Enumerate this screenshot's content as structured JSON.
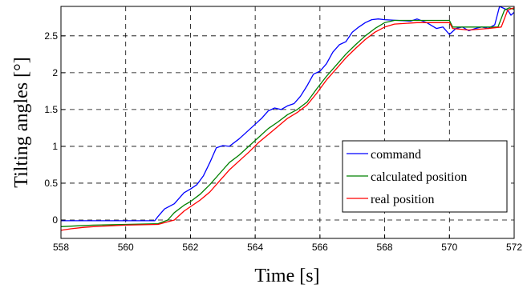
{
  "chart_data": {
    "type": "line",
    "title": "",
    "xlabel": "Time [s]",
    "ylabel": "Tilting angles [°]",
    "xlim": [
      558,
      572
    ],
    "ylim": [
      -0.25,
      2.9
    ],
    "x_ticks": [
      558,
      560,
      562,
      564,
      566,
      568,
      570,
      572
    ],
    "y_ticks": [
      0,
      0.5,
      1,
      1.5,
      2,
      2.5
    ],
    "x_tick_labels": [
      "558",
      "560",
      "562",
      "564",
      "566",
      "568",
      "570",
      "572"
    ],
    "y_tick_labels": [
      "0",
      "0.5",
      "1",
      "1.5",
      "2",
      "2.5"
    ],
    "grid": true,
    "legend_position": "lower-right",
    "series": [
      {
        "name": "command",
        "color": "#0000ff",
        "points": [
          [
            558,
            -0.01
          ],
          [
            559,
            -0.01
          ],
          [
            560,
            -0.01
          ],
          [
            560.9,
            -0.01
          ],
          [
            561.0,
            0.05
          ],
          [
            561.2,
            0.15
          ],
          [
            561.5,
            0.22
          ],
          [
            561.8,
            0.37
          ],
          [
            562.0,
            0.42
          ],
          [
            562.2,
            0.48
          ],
          [
            562.4,
            0.6
          ],
          [
            562.6,
            0.78
          ],
          [
            562.8,
            0.98
          ],
          [
            563.0,
            1.01
          ],
          [
            563.2,
            1.0
          ],
          [
            563.5,
            1.1
          ],
          [
            563.8,
            1.22
          ],
          [
            564.0,
            1.3
          ],
          [
            564.2,
            1.38
          ],
          [
            564.4,
            1.48
          ],
          [
            564.6,
            1.52
          ],
          [
            564.8,
            1.5
          ],
          [
            565.0,
            1.55
          ],
          [
            565.2,
            1.58
          ],
          [
            565.4,
            1.68
          ],
          [
            565.6,
            1.82
          ],
          [
            565.8,
            1.98
          ],
          [
            566.0,
            2.02
          ],
          [
            566.2,
            2.12
          ],
          [
            566.4,
            2.28
          ],
          [
            566.6,
            2.38
          ],
          [
            566.8,
            2.42
          ],
          [
            567.0,
            2.55
          ],
          [
            567.2,
            2.62
          ],
          [
            567.4,
            2.68
          ],
          [
            567.6,
            2.72
          ],
          [
            567.8,
            2.73
          ],
          [
            568.0,
            2.72
          ],
          [
            568.4,
            2.71
          ],
          [
            568.8,
            2.7
          ],
          [
            569.0,
            2.73
          ],
          [
            569.3,
            2.68
          ],
          [
            569.6,
            2.6
          ],
          [
            569.8,
            2.62
          ],
          [
            570.0,
            2.52
          ],
          [
            570.2,
            2.6
          ],
          [
            570.4,
            2.62
          ],
          [
            570.6,
            2.57
          ],
          [
            570.8,
            2.6
          ],
          [
            571.0,
            2.62
          ],
          [
            571.2,
            2.6
          ],
          [
            571.4,
            2.65
          ],
          [
            571.55,
            2.9
          ],
          [
            571.8,
            2.85
          ],
          [
            571.9,
            2.78
          ],
          [
            572.0,
            2.82
          ]
        ]
      },
      {
        "name": "calculated position",
        "color": "#008000",
        "points": [
          [
            558,
            -0.09
          ],
          [
            558.5,
            -0.08
          ],
          [
            559,
            -0.07
          ],
          [
            560,
            -0.06
          ],
          [
            561.0,
            -0.05
          ],
          [
            561.3,
            0.0
          ],
          [
            561.5,
            0.1
          ],
          [
            561.8,
            0.2
          ],
          [
            562.0,
            0.25
          ],
          [
            562.3,
            0.35
          ],
          [
            562.6,
            0.48
          ],
          [
            562.9,
            0.63
          ],
          [
            563.2,
            0.78
          ],
          [
            563.5,
            0.88
          ],
          [
            563.8,
            1.0
          ],
          [
            564.1,
            1.12
          ],
          [
            564.4,
            1.24
          ],
          [
            564.7,
            1.33
          ],
          [
            565.0,
            1.43
          ],
          [
            565.3,
            1.5
          ],
          [
            565.6,
            1.6
          ],
          [
            565.9,
            1.78
          ],
          [
            566.2,
            1.95
          ],
          [
            566.5,
            2.1
          ],
          [
            566.8,
            2.25
          ],
          [
            567.1,
            2.38
          ],
          [
            567.4,
            2.5
          ],
          [
            567.7,
            2.6
          ],
          [
            568.0,
            2.68
          ],
          [
            568.3,
            2.71
          ],
          [
            569.0,
            2.71
          ],
          [
            570.0,
            2.71
          ],
          [
            570.1,
            2.62
          ],
          [
            570.6,
            2.62
          ],
          [
            571.2,
            2.62
          ],
          [
            571.5,
            2.62
          ],
          [
            571.7,
            2.85
          ],
          [
            571.85,
            2.88
          ],
          [
            572.0,
            2.86
          ]
        ]
      },
      {
        "name": "real position",
        "color": "#ff0000",
        "points": [
          [
            558,
            -0.14
          ],
          [
            558.3,
            -0.12
          ],
          [
            558.7,
            -0.1
          ],
          [
            559,
            -0.09
          ],
          [
            559.5,
            -0.08
          ],
          [
            560,
            -0.07
          ],
          [
            561.0,
            -0.06
          ],
          [
            561.5,
            0.0
          ],
          [
            561.8,
            0.12
          ],
          [
            562.0,
            0.18
          ],
          [
            562.3,
            0.27
          ],
          [
            562.6,
            0.38
          ],
          [
            562.9,
            0.53
          ],
          [
            563.2,
            0.68
          ],
          [
            563.5,
            0.8
          ],
          [
            563.8,
            0.92
          ],
          [
            564.1,
            1.05
          ],
          [
            564.4,
            1.16
          ],
          [
            564.7,
            1.27
          ],
          [
            565.0,
            1.38
          ],
          [
            565.3,
            1.46
          ],
          [
            565.6,
            1.56
          ],
          [
            565.9,
            1.72
          ],
          [
            566.2,
            1.9
          ],
          [
            566.5,
            2.05
          ],
          [
            566.8,
            2.2
          ],
          [
            567.1,
            2.33
          ],
          [
            567.4,
            2.45
          ],
          [
            567.7,
            2.55
          ],
          [
            568.0,
            2.62
          ],
          [
            568.3,
            2.66
          ],
          [
            569.0,
            2.68
          ],
          [
            570.0,
            2.68
          ],
          [
            570.1,
            2.6
          ],
          [
            570.6,
            2.58
          ],
          [
            571.2,
            2.6
          ],
          [
            571.6,
            2.62
          ],
          [
            571.8,
            2.85
          ],
          [
            572.0,
            2.88
          ]
        ]
      }
    ]
  }
}
